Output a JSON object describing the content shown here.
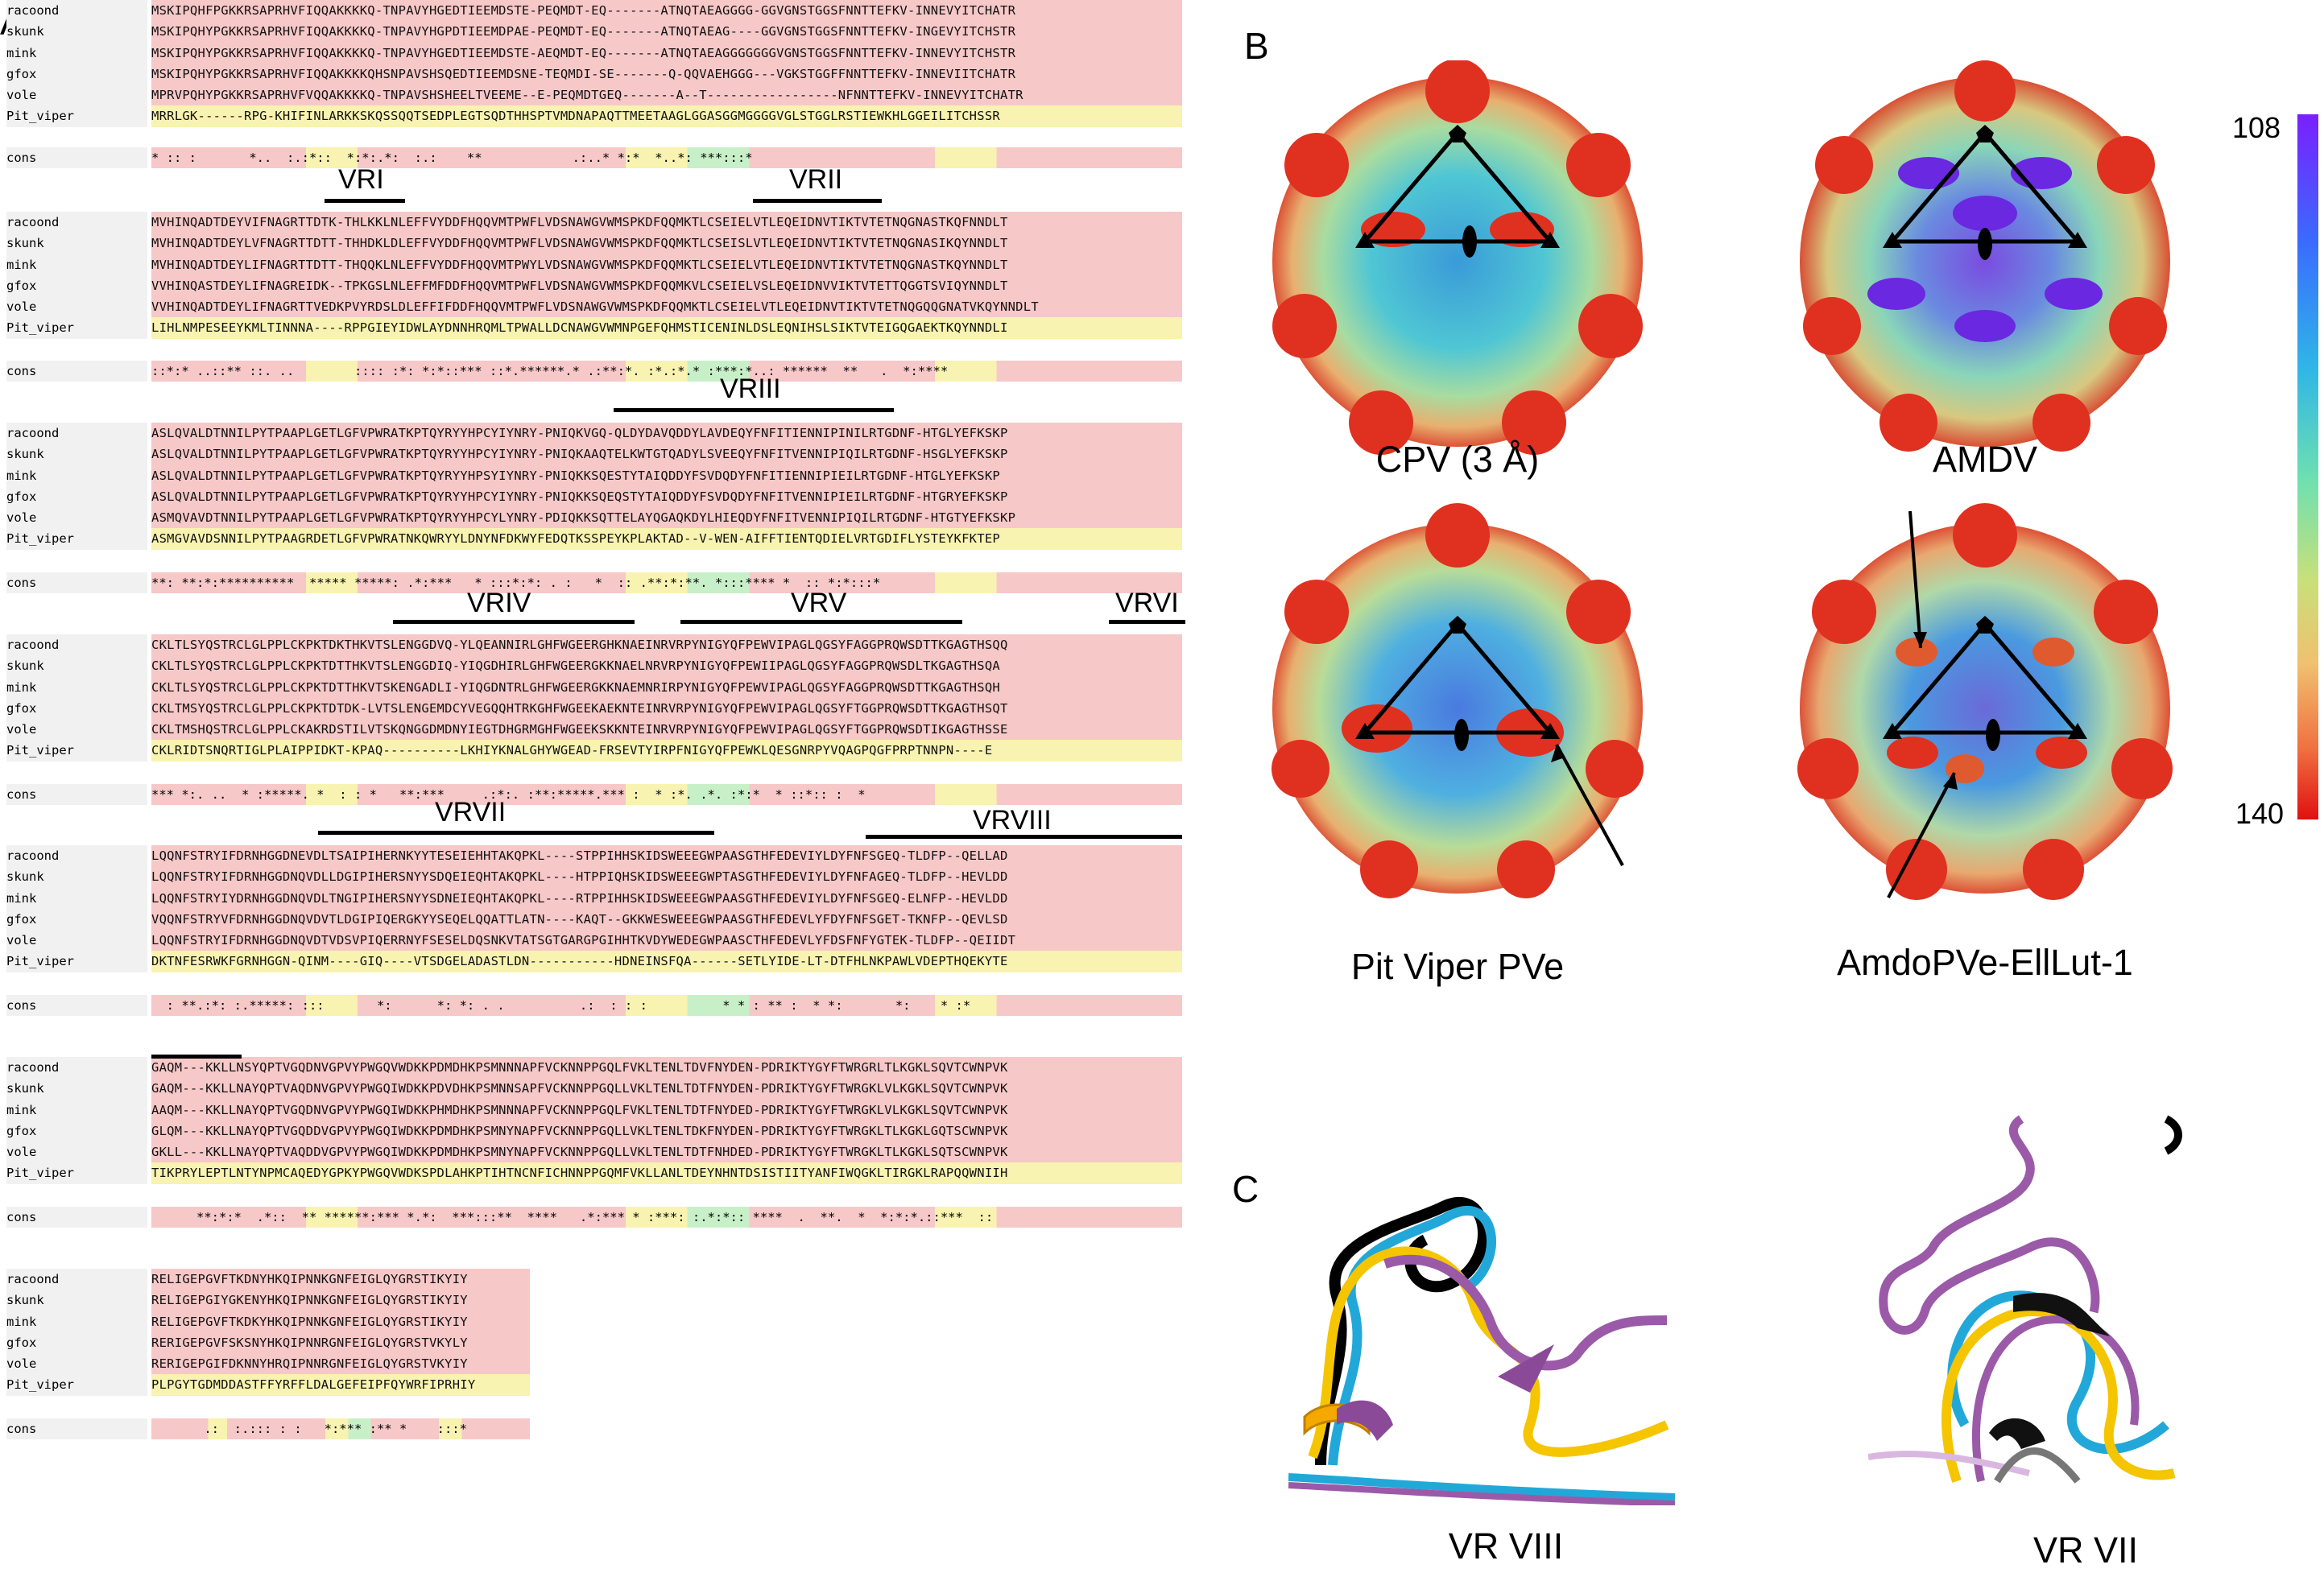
{
  "panel_letters": {
    "a": "A",
    "b": "B",
    "c": "C"
  },
  "alignment": {
    "blocks": [
      {
        "names": [
          "racoond",
          "skunk",
          "mink",
          "gfox",
          "vole",
          "Pit_viper"
        ],
        "seqs": [
          "MSKIPQHFPGKKRSAPRHVFIQQAKKKKQ-TNPAVYHGEDTIEEMDSTE-PEQMDT-EQ-------ATNQTAEAGGGG-GGVGNSTGGSFNNTTEFKV-INNEVYITCHATR",
          "MSKIPQHYPGKKRSAPRHVFIQQAKKKKQ-TNPAVYHGPDTIEEMDPAE-PEQMDT-EQ-------ATNQTAEAG----GGVGNSTGGSFNNTTEFKV-INGEVYITCHSTR",
          "MSKIPQHYPGKKRSAPRHVFIQQAKKKKQ-TNPAVYHGEDTIEEMDSTE-AEQMDT-EQ-------ATNQTAEAGGGGGGGVGNSTGGSFNNTTEFKV-INNEVYITCHSTR",
          "MSKIPQHYPGKKRSAPRHVFIQQAKKKKQHSNPAVSHSQEDTIEEMDSNE-TEQMDI-SE-------Q-QQVAEHGGG---VGKSTGGFFNNTTEFKV-INNEVIITCHATR",
          "MPRVPQHYPGKKRSAPRHVFVQQAKKKKQ-TNPAVSHSHEELTVEEME--E-PEQMDTGEQ-------A--T-----------------NFNNTTEFKV-INNEVYITCHATR",
          "MRRLGK------RPG-KHIFINLARKKSKQSSQQTSEDPLEGTSQDTHHSPTVMDNAPAQTTMEETAAGLGGASGGMGGGGVGLSTGGLRSTIEWKHLGGEILITCHSSR"
        ],
        "cons": "* :: :       *..  :.:*::  *:*:.*:  :.:    **            .:..* *:*  *..*: ***:::*"
      },
      {
        "names": [
          "racoond",
          "skunk",
          "mink",
          "gfox",
          "vole",
          "Pit_viper"
        ],
        "seqs": [
          "MVHINQADTDEYVIFNAGRTTDTK-THLKKLNLEFFVYDDFHQQVMTPWFLVDSNAWGVWMSPKDFQQMKTLCSEIELVTLEQEIDNVTIKTVTETNQGNASTKQFNNDLT",
          "MVHINQADTDEYLVFNAGRTTDTT-THHDKLDLEFFVYDDFHQQVMTPWFLVDSNAWGVWMSPKDFQQMKTLCSEISLVTLEQEIDNVTIKTVTETNQGNASIKQYNNDLT",
          "MVHINQADTDEYLIFNAGRTTDTT-THQQKLNLEFFVYDDFHQQVMTPWYLVDSNAWGVWMSPKDFQQMKTLCSEIELVTLEQEIDNVTIKTVTETNQGNASTKQYNNDLT",
          "VVHINQASTDEYLIFNAGREIDK--TPKGSLNLEFFMFDDFHQQVMTPWFLVDSNAWGVWMSPKDFQQMKVLCSEIELVSLEQEIDNVVIKTVTETTQGGTSVIQYNNDLT",
          "VVHINQADTDEYLIFNAGRTTVEDKPVYRDSLDLEFFIFDDFHQQVMTPWFLVDSNAWGVWMSPKDFQQMKTLCSEIELVTLEQEIDNVTIKTVTETNQGQQGNATVKQYNNDLT",
          "LIHLNMPESEEYKMLTINNNA----RPPGIEYIDWLAYDNNHRQMLTPWALLDCNAWGVWMNPGEFQHMSTICENINLDSLEQNIHSLSIKTVTEIGQGAEKTKQYNNDLI"
        ],
        "cons": "::*:* ..::** ::. ..        :::: :*: *:*::*** ::*.******.* .:**:*. :*.:*.* :***:*..: ******  **   .  *:****"
      },
      {
        "names": [
          "racoond",
          "skunk",
          "mink",
          "gfox",
          "vole",
          "Pit_viper"
        ],
        "seqs": [
          "ASLQVALDTNNILPYTPAAPLGETLGFVPWRATKPTQYRYYHPCYIYNRY-PNIQKVGQ-QLDYDAVQDDYLAVDEQYFNFITIENNIPINILRTGDNF-HTGLYEFKSKP",
          "ASLQVALDTNNILPYTPAAPLGETLGFVPWRATKPTQYRYYHPCYIYNRY-PNIQKAAQTELKWTGTQADYLSVEEQYFNFITVENNIPIQILRTGDNF-HSGLYEFKSKP",
          "ASLQVALDTNNILPYTPAAPLGETLGFVPWRATKPTQYRYYHPSYIYNRY-PNIQKKSQESTYTAIQDDYFSVDQDYFNFITIENNIPIEILRTGDNF-HTGLYEFKSKP",
          "ASLQVALDTNNILPYTPAAPLGETLGFVPWRATKPTQYRYYHPCYIYNRY-PNIQKKSQEQSTYTAIQDDYFSVDQDYFNFITVENNIPIEILRTGDNF-HTGRYEFKSKP",
          "ASMQVAVDTNNILPYTPAAPLGETLGFVPWRATKPTQYRYYHPCYLYNRY-PDIQKKSQTTELAYQGAQKDYLHIEQDYFNFITVENNIPIQILRTGDNF-HTGTYEFKSKP",
          "ASMGVAVDSNNILPYTPAAGRDETLGFVPWRATNKQWRYYLDNYNFDKWYFEDQTKSSPEYKPLAKTAD--V-WEN-AIFFTIENTQDIELVRTGDIFLYSTEYKFKTEP"
        ],
        "cons": "**: **:*:**********  ***** *****: .*:***   * :::*:*: . :   *  :: .**:*:**. *:::**** *  :: *:*:::*"
      },
      {
        "names": [
          "racoond",
          "skunk",
          "mink",
          "gfox",
          "vole",
          "Pit_viper"
        ],
        "seqs": [
          "CKLTLSYQSTRCLGLPPLCKPKTDKTHKVTSLENGGDVQ-YLQEANNIRLGHFWGEERGHKNAEINRVRPYNIGYQFPEWVIPAGLQGSYFAGGPRQWSDTTKGAGTHSQQ",
          "CKLTLSYQSTRCLGLPPLCKPKTDTTHKVTSLENGGDIQ-YIQGDHIRLGHFWGEERGKKNAELNRVRPYNIGYQFPEWIIPAGLQGSYFAGGPRQWSDLTKGAGTHSQA",
          "CKLTLSYQSTRCLGLPPLCKPKTDTTHKVTSKENGADLI-YIQGDNTRLGHFWGEERGKKNAEMNRIRPYNIGYQFPEWVIPAGLQGSYFAGGPRQWSDTTKGAGTHSQH",
          "CKLTMSYQSTRCLGLPPLCKPKTDTDK-LVTSLENGEMDCYVEGQQHTRKGHFWGEEKAEKNTEINRVRPYNIGYQFPEWVIPAGLQGSYFTGGPRQWSDTTKGAGTHSQT",
          "CKLTMSHQSTRCLGLPPLCKAKRDSTILVTSKQNGGDMDNYIEGTDHGRMGHFWGEEKSKKNTEINRVRPYNIGYQFPEWVIPAGLQGSYFTGGPRQWSDTIKGAGTHSSE",
          "CKLRIDTSNQRTIGLPLAIPPIDKT-KPAQ----------LKHIYKNALGHYWGEAD-FRSEVTYIRPFNIGYQFPEWKLQESGNRPYVQAGPQGFPRPTNNPN----E"
        ],
        "cons": "*** *:. ..  * :*****. *  : : *   **:***     .:*:. :**:*****.*** :  * :*. .*. :*:*  * ::*:: :  *"
      },
      {
        "names": [
          "racoond",
          "skunk",
          "mink",
          "gfox",
          "vole",
          "Pit_viper"
        ],
        "seqs": [
          "LQQNFSTRYIFDRNHGGDNEVDLTSAIPIHERNKYYTESEIEHHTAKQPKL----STPPIHHSKIDSWEEEGWPAASGTHFEDEVIYLDYFNFSGEQ-TLDFP--QELLAD",
          "LQQNFSTRYIFDRNHGGDNQVDLLDGIPIHERSNYYSDQEIEQHTAKQPKL----HTPPIQHSKIDSWEEEGWPTASGTHFEDEVIYLDYFNFAGEQ-TLDFP--HEVLDD",
          "LQQNFSTRYIYDRNHGGDNQVDLTNGIPIHERSNYYSDNEIEQHTAKQPKL----RTPPIHHSKIDSWEEEGWPAASGTHFEDEVIYLDYFNFSGEQ-ELNFP--HEVLDD",
          "VQQNFSTRYVFDRNHGGDNQVDVTLDGIPIQERGKYYSEQELQQATTLATN----KAQT--GKKWESWEEEGWPAASGTHFEDEVLYFDYFNFSGET-TKNFP--QEVLSD",
          "LQQNFSTRYIFDRNHGGDNQVDTVDSVPIQERRNYFSESELDQSNKVTATSGTGARGPGIHHTKVDYWEDEGWPAASCTHFEDEVLYFDSFNFYGTEK-TLDFP--QEIIDT",
          "DKTNFESRWKFGRNHGGN-QINM----GIQ----VTSDGELADASTLDN-----------HDNEINSFQA------SETLYIDE-LT-DTFHLNKPAWLVDEPTHQEKYTE"
        ],
        "cons": "  : **.:*: :.*****: :::       *:      *: *: . .          .:  : : :          * * : ** :  * *:       *:    * :*"
      },
      {
        "names": [
          "racoond",
          "skunk",
          "mink",
          "gfox",
          "vole",
          "Pit_viper"
        ],
        "seqs": [
          "GAQM---KKLLNSYQPTVGQDNVGPVYPWGQVWDKKPDMDHKPSMNNNAPFVCKNNPPGQLFVKLTENLTDVFNYDEN-PDRIKTYGYFTWRGRLTLKGKLSQVTCWNPVK",
          "GAQM---KKLLNAYQPTVAQDNVGPVYPWGQIWDKKPDVDHKPSMNNSAPFVCKNNPPGQLLVKLTENLTDTFNYDEN-PDRIKTYGYFTWRGKLVLKGKLSQVTCWNPVK",
          "AAQM---KKLLNAYQPTVGQDNVGPVYPWGQIWDKKPHMDHKPSMNNNAPFVCKNNPPGQLFVKLTENLTDTFNYDED-PDRIKTYGYFTWRGKLVLKGKLSQVTCWNPVK",
          "GLQM---KKLLNAYQPTVGQDDVGPVYPWGQIWDKKPDMDHKPSMNYNAPFVCKNNPPGQLLVKLTENLTDKFNYDEN-PDRIKTYGYFTWRGKLTLKGKLGQTSCWNPVK",
          "GKLL---KKLLNAYQPTVAQDDVGPVYPWGQIWDKKPDMDHKPSMNYNAPFVCKNNPPGQLLVKLTENLTDTFNHDED-PDRIKTYGYFTWRGKLTLKGKLSQTSCWNPVK",
          "TIKPRYLEPTLNTYNPMCAQEDYGPKYPWGQVWDKSPDLAHKPTIHTNCNFICHNNPPGQMFVKLLANLTDEYNHNTDSISTIITYANFIWQGKLTIRGKLRAPQQWNIIH"
        ],
        "cons": "      **:*:*  .*::  ** ******:*** *.*:  ***:::**  ****   .*:*** * :***: :.*:*:: ****  .  **.  *  *:*:*.::***  :: "
      },
      {
        "names": [
          "racoond",
          "skunk",
          "mink",
          "gfox",
          "vole",
          "Pit_viper"
        ],
        "seqs": [
          "RELIGEPGVFTKDNYHKQIPNNKGNFEIGLQYGRSTIKYIY",
          "RELIGEPGIYGKENYHKQIPNNKGNFEIGLQYGRSTIKYIY",
          "RELIGEPGVFTKDKYHKQIPNNKGNFEIGLQYGRSTIKYIY",
          "RERIGEPGVFSKSNYHKQIPNNRGNFEIGLQYGRSTVKYLY",
          "RERIGEPGIFDKNNYHRQIPNNRGNFEIGLQYGRSTVKYIY",
          "PLPGYTGDMDDASTFFYRFFLDALGEFEIPFQYWRFIPRHIY"
        ],
        "cons": "       .:  :.::: : :   *:*** :** *    :::*"
      }
    ],
    "cons_label": "cons",
    "vr_labels": {
      "vri": "VRI",
      "vrii": "VRII",
      "vriii": "VRIII",
      "vriv": "VRIV",
      "vrv": "VRV",
      "vrvi": "VRVI",
      "vrvii": "VRVII",
      "vrviii": "VRVIII"
    }
  },
  "panel_b": {
    "captions": {
      "cpv": "CPV (3 Å)",
      "amdv": "AMDV",
      "pitviper": "Pit Viper PVe",
      "amdope": "AmdoPVe-EllLut-1"
    },
    "scale": {
      "top": "108",
      "bottom": "140",
      "colors": [
        "#7a1fff",
        "#3a6bff",
        "#2fb6e6",
        "#6fe0b0",
        "#c8e07a",
        "#f0c070",
        "#f07040",
        "#e01010"
      ]
    }
  },
  "panel_c": {
    "captions": {
      "left": "VR VIII",
      "right": "VR VII"
    }
  }
}
